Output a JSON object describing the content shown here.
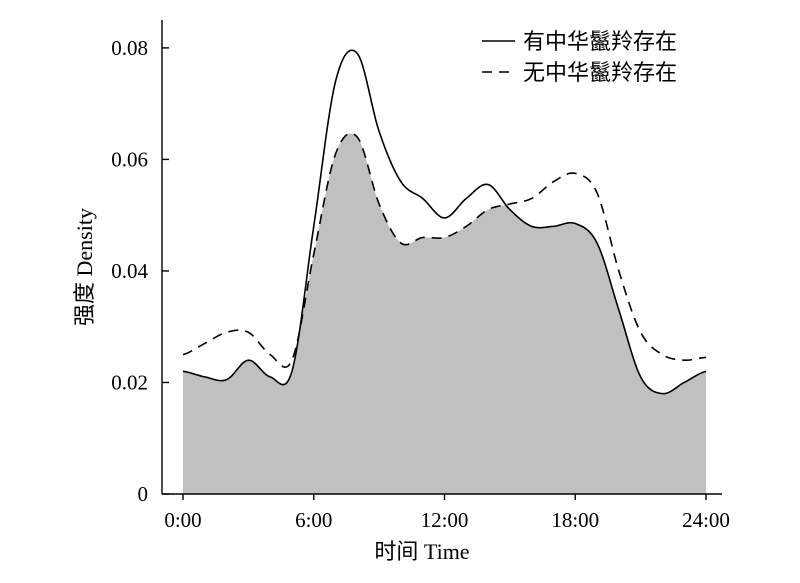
{
  "chart_data": {
    "type": "area",
    "xlabel": "时间 Time",
    "ylabel": "强度 Density",
    "xlim": [
      0,
      24
    ],
    "ylim": [
      0,
      0.085
    ],
    "x_ticks": [
      "0:00",
      "6:00",
      "12:00",
      "18:00",
      "24:00"
    ],
    "y_ticks": [
      "0",
      "0.02",
      "0.04",
      "0.06",
      "0.08"
    ],
    "x_tick_values": [
      0,
      6,
      12,
      18,
      24
    ],
    "y_tick_values": [
      0,
      0.02,
      0.04,
      0.06,
      0.08
    ],
    "grid": false,
    "legend_position": "top-right",
    "overlap_fill_color": "#c0c0c0",
    "x": [
      0,
      1,
      2,
      3,
      4,
      5,
      6,
      7,
      8,
      9,
      10,
      11,
      12,
      13,
      14,
      15,
      16,
      17,
      18,
      19,
      20,
      21,
      22,
      23,
      24
    ],
    "series": [
      {
        "name": "有中华鬣羚存在",
        "line_style": "solid",
        "values": [
          0.022,
          0.021,
          0.0205,
          0.024,
          0.021,
          0.022,
          0.048,
          0.074,
          0.079,
          0.065,
          0.056,
          0.053,
          0.0495,
          0.053,
          0.0555,
          0.051,
          0.048,
          0.048,
          0.0485,
          0.045,
          0.033,
          0.021,
          0.018,
          0.02,
          0.022
        ]
      },
      {
        "name": "无中华鬣羚存在",
        "line_style": "dashed",
        "values": [
          0.025,
          0.027,
          0.029,
          0.029,
          0.025,
          0.024,
          0.043,
          0.061,
          0.064,
          0.052,
          0.045,
          0.046,
          0.046,
          0.048,
          0.051,
          0.052,
          0.053,
          0.056,
          0.0575,
          0.054,
          0.04,
          0.029,
          0.025,
          0.024,
          0.0245
        ]
      }
    ]
  }
}
